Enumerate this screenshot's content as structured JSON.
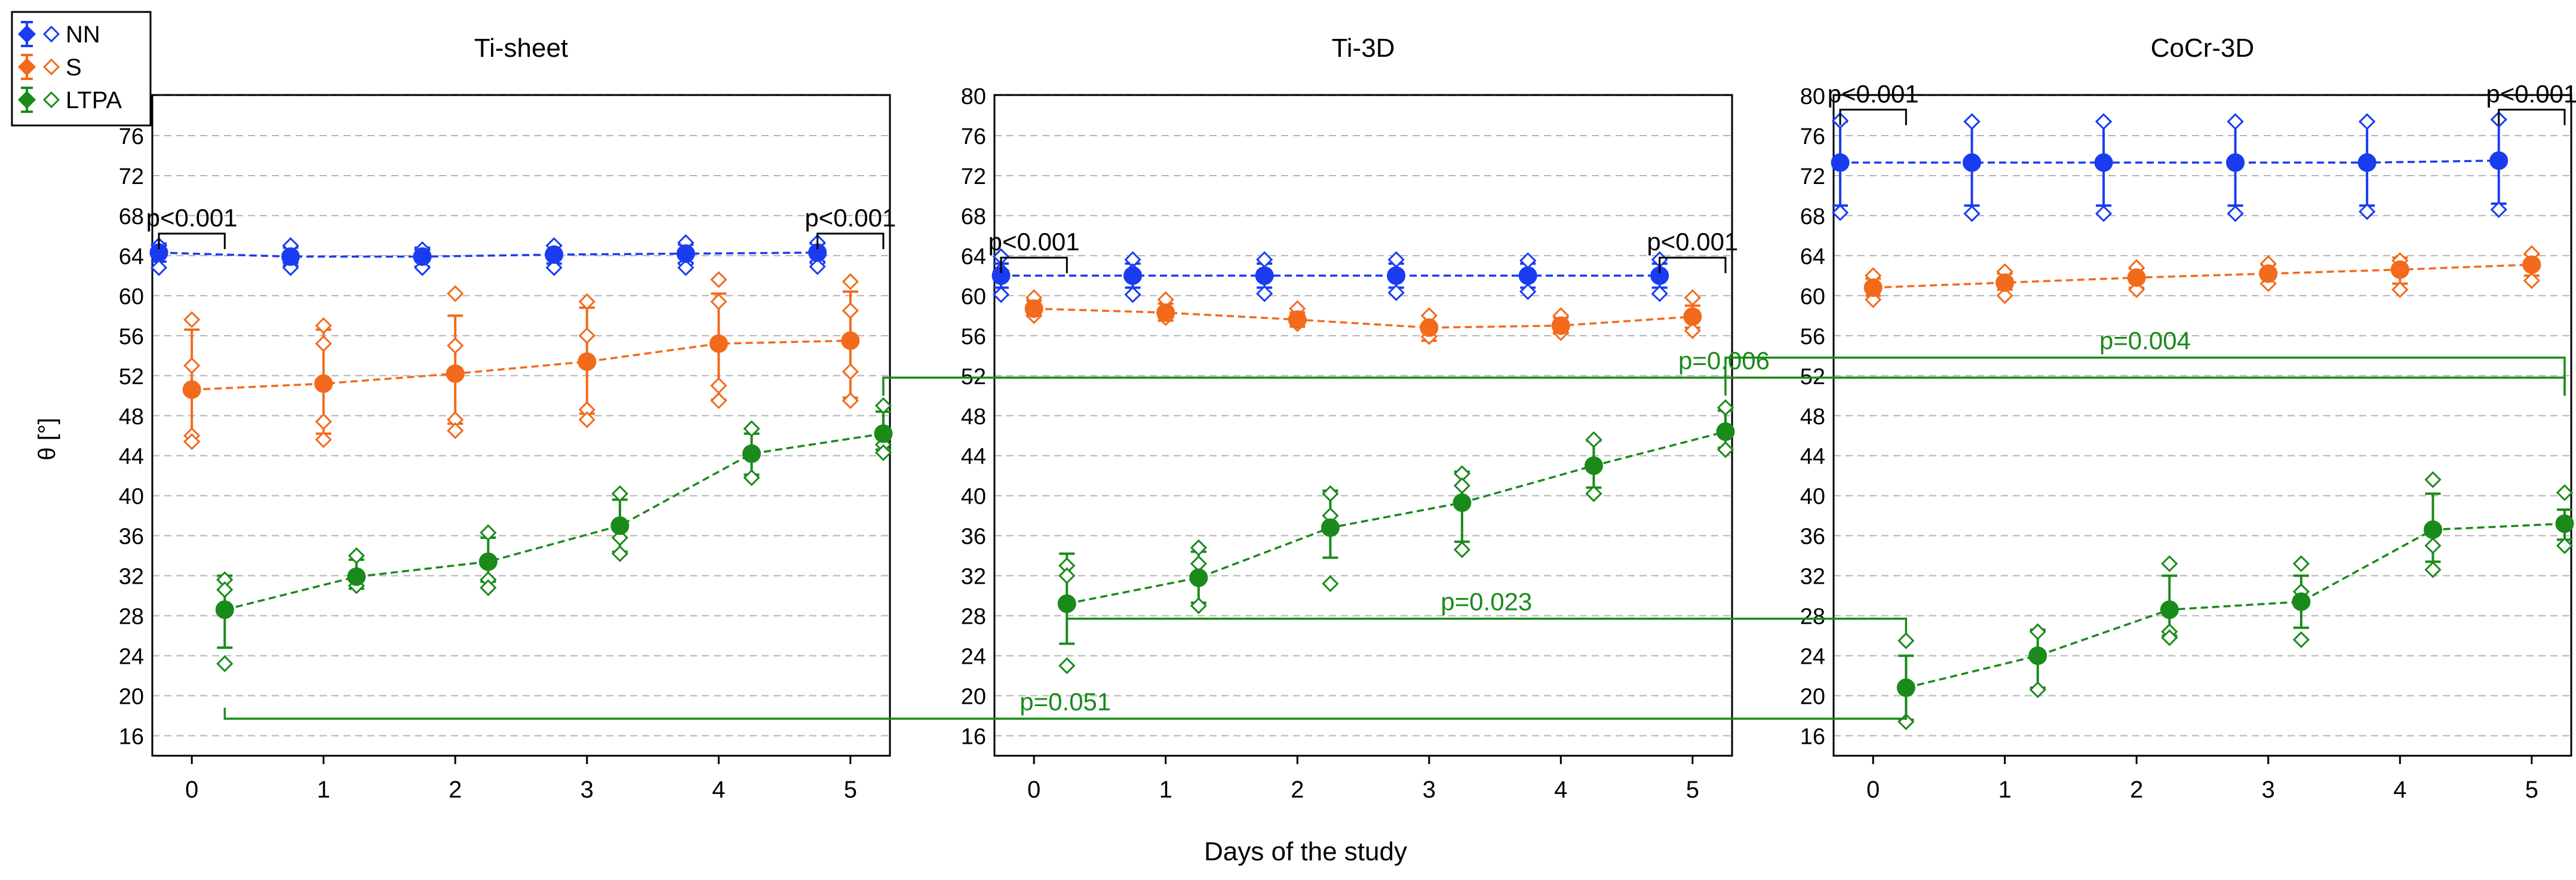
{
  "chart_data": {
    "type": "line",
    "xlabel": "Days of the study",
    "ylabel": "θ [°]",
    "legend": {
      "placement": "top-left",
      "entries": [
        "NN",
        "S",
        "LTPA"
      ]
    },
    "colors": {
      "NN": "#1a3cf0",
      "S": "#f26a1b",
      "LTPA": "#1a8a1a",
      "bracket": "#1a8a1a",
      "grid": "#b4b4b4"
    },
    "x": [
      0,
      1,
      2,
      3,
      4,
      5
    ],
    "x_ticks": [
      "0",
      "1",
      "2",
      "3",
      "4",
      "5"
    ],
    "xlim": [
      -0.3,
      5.3
    ],
    "ylim": [
      14,
      80
    ],
    "y_ticks": [
      "16",
      "20",
      "24",
      "28",
      "32",
      "36",
      "40",
      "44",
      "48",
      "52",
      "56",
      "60",
      "64",
      "68",
      "72",
      "76",
      "80"
    ],
    "grid": "horizontal dashed",
    "error_bars": true,
    "panels": [
      {
        "title": "Ti-sheet",
        "series": [
          {
            "name": "NN",
            "offset": -0.25,
            "values": [
              64.3,
              63.9,
              63.9,
              64.1,
              64.2,
              64.3
            ],
            "err_lo": [
              63.4,
              63.0,
              62.9,
              63.2,
              63.3,
              63.4
            ],
            "err_hi": [
              65.2,
              64.8,
              64.8,
              65.0,
              65.1,
              65.2
            ],
            "obs": [
              [
                65.0,
                62.8
              ],
              [
                65.0,
                63.3,
                62.8
              ],
              [
                64.6,
                62.8
              ],
              [
                65.0,
                62.8
              ],
              [
                65.3,
                63.2,
                62.8
              ],
              [
                65.3,
                63.3,
                62.9
              ]
            ]
          },
          {
            "name": "S",
            "offset": 0,
            "values": [
              50.6,
              51.2,
              52.2,
              53.4,
              55.2,
              55.5
            ],
            "err_lo": [
              45.4,
              46.2,
              47.2,
              48.2,
              49.6,
              49.8
            ],
            "err_hi": [
              56.6,
              56.6,
              58.0,
              58.8,
              60.2,
              60.4
            ],
            "obs": [
              [
                57.6,
                53.0,
                46.0,
                45.4
              ],
              [
                57.0,
                55.2,
                47.4,
                45.6
              ],
              [
                60.2,
                55.0,
                47.6,
                46.5
              ],
              [
                59.4,
                56.0,
                48.6,
                47.6
              ],
              [
                61.6,
                59.4,
                51.0,
                49.5
              ],
              [
                61.4,
                58.5,
                52.4,
                49.5
              ]
            ]
          },
          {
            "name": "LTPA",
            "offset": 0.25,
            "values": [
              28.6,
              31.9,
              33.4,
              37.0,
              44.2,
              46.2
            ],
            "err_lo": [
              24.8,
              30.7,
              31.4,
              34.4,
              42.1,
              44.6
            ],
            "err_hi": [
              32.0,
              33.6,
              35.8,
              39.6,
              46.2,
              48.4
            ],
            "obs": [
              [
                31.6,
                30.6,
                23.2
              ],
              [
                34.0,
                31.0
              ],
              [
                36.3,
                31.6,
                30.8
              ],
              [
                40.2,
                35.8,
                34.2
              ],
              [
                46.7,
                41.8
              ],
              [
                49.0,
                45.1,
                44.3
              ]
            ]
          }
        ],
        "annotations": [
          {
            "text": "p<0.001",
            "type": "bracket",
            "x1": -0.25,
            "x2": 0.25,
            "level": 66.2,
            "color": "#000000"
          },
          {
            "text": "p<0.001",
            "type": "bracket",
            "x1": 4.75,
            "x2": 5.25,
            "level": 66.2,
            "color": "#000000"
          }
        ]
      },
      {
        "title": "Ti-3D",
        "series": [
          {
            "name": "NN",
            "offset": -0.25,
            "values": [
              62.0,
              62.0,
              62.0,
              62.0,
              62.0,
              62.0
            ],
            "err_lo": [
              60.8,
              60.8,
              60.8,
              60.8,
              60.8,
              60.8
            ],
            "err_hi": [
              63.2,
              63.2,
              63.2,
              63.2,
              63.2,
              63.2
            ],
            "obs": [
              [
                63.9,
                62.5,
                60.1
              ],
              [
                63.6,
                62.4,
                60.1
              ],
              [
                63.6,
                62.0,
                60.2
              ],
              [
                63.6,
                62.2,
                60.3
              ],
              [
                63.5,
                62.0,
                60.4
              ],
              [
                63.6,
                62.0,
                60.2
              ]
            ]
          },
          {
            "name": "S",
            "offset": 0,
            "values": [
              58.7,
              58.3,
              57.6,
              56.8,
              57.0,
              57.9
            ],
            "err_lo": [
              58.0,
              57.5,
              56.9,
              55.5,
              56.2,
              56.8
            ],
            "err_hi": [
              59.5,
              59.2,
              58.3,
              58.0,
              57.8,
              59.0
            ],
            "obs": [
              [
                59.8,
                58.0
              ],
              [
                59.6,
                57.8
              ],
              [
                58.7,
                57.2
              ],
              [
                58.0,
                55.9
              ],
              [
                58.0,
                56.3
              ],
              [
                59.8,
                56.5
              ]
            ]
          },
          {
            "name": "LTPA",
            "offset": 0.25,
            "values": [
              29.2,
              31.8,
              36.8,
              39.3,
              43.0,
              46.4
            ],
            "err_lo": [
              25.2,
              29.3,
              33.8,
              35.4,
              40.8,
              44.8
            ],
            "err_hi": [
              34.2,
              34.4,
              40.5,
              42.4,
              45.5,
              48.5
            ],
            "obs": [
              [
                33.0,
                32.0,
                23.0
              ],
              [
                34.8,
                33.2,
                29.0
              ],
              [
                40.2,
                38.0,
                31.2
              ],
              [
                42.2,
                41.0,
                34.6
              ],
              [
                45.6,
                40.2
              ],
              [
                48.8,
                44.6
              ]
            ]
          }
        ],
        "annotations": [
          {
            "text": "p<0.001",
            "type": "bracket",
            "x1": -0.25,
            "x2": 0.25,
            "level": 63.8,
            "color": "#000000"
          },
          {
            "text": "p<0.001",
            "type": "bracket",
            "x1": 4.75,
            "x2": 5.25,
            "level": 63.8,
            "color": "#000000"
          }
        ]
      },
      {
        "title": "CoCr-3D",
        "series": [
          {
            "name": "NN",
            "offset": -0.25,
            "values": [
              73.3,
              73.3,
              73.3,
              73.3,
              73.3,
              73.5
            ],
            "err_lo": [
              69.0,
              69.0,
              69.0,
              69.0,
              69.0,
              69.2
            ],
            "err_hi": [
              77.4,
              77.4,
              77.4,
              77.4,
              77.4,
              77.6
            ],
            "obs": [
              [
                77.5,
                73.3,
                68.3
              ],
              [
                77.4,
                73.3,
                68.2
              ],
              [
                77.4,
                73.3,
                68.2
              ],
              [
                77.4,
                73.3,
                68.2
              ],
              [
                77.4,
                73.3,
                68.4
              ],
              [
                77.6,
                73.5,
                68.6
              ]
            ]
          },
          {
            "name": "S",
            "offset": 0,
            "values": [
              60.8,
              61.3,
              61.8,
              62.2,
              62.6,
              63.1
            ],
            "err_lo": [
              60.0,
              60.6,
              60.8,
              61.2,
              61.2,
              62.0
            ],
            "err_hi": [
              61.7,
              62.2,
              62.7,
              63.1,
              63.8,
              64.1
            ],
            "obs": [
              [
                62.0,
                59.6
              ],
              [
                62.4,
                60.0
              ],
              [
                62.8,
                60.6
              ],
              [
                63.2,
                61.2
              ],
              [
                63.5,
                60.6
              ],
              [
                64.2,
                61.5
              ]
            ]
          },
          {
            "name": "LTPA",
            "offset": 0.25,
            "values": [
              20.8,
              24.0,
              28.6,
              29.4,
              36.6,
              37.2
            ],
            "err_lo": [
              17.6,
              20.8,
              26.0,
              26.8,
              33.4,
              35.6
            ],
            "err_hi": [
              24.0,
              26.6,
              32.0,
              32.0,
              40.2,
              38.6
            ],
            "obs": [
              [
                25.5,
                17.4
              ],
              [
                26.4,
                20.6
              ],
              [
                33.2,
                26.4,
                25.8
              ],
              [
                33.2,
                30.4,
                25.6
              ],
              [
                41.6,
                35.0,
                32.6
              ],
              [
                40.3,
                35.0
              ]
            ]
          }
        ],
        "annotations": [
          {
            "text": "p<0.001",
            "type": "bracket",
            "x1": -0.25,
            "x2": 0.25,
            "level": 78.6,
            "color": "#000000"
          },
          {
            "text": "p<0.001",
            "type": "bracket",
            "x1": 4.75,
            "x2": 5.25,
            "level": 78.6,
            "color": "#000000"
          }
        ]
      }
    ],
    "cross_panel_annotations": [
      {
        "text": "p=0.006",
        "from_panel": 0,
        "from_x": 5.25,
        "to_panel": 2,
        "to_x": 5.25,
        "level": 51.8,
        "drop_end": 50.0
      },
      {
        "text": "p=0.004",
        "from_panel": 1,
        "from_x": 5.25,
        "to_panel": 2,
        "to_x": 5.25,
        "level": 53.8,
        "drop_end": 50.0
      },
      {
        "text": "p=0.023",
        "from_panel": 1,
        "from_x": 0.25,
        "to_panel": 2,
        "to_x": 0.25,
        "level": 27.7,
        "drop_end": 26.2
      },
      {
        "text": "p=0.051",
        "from_panel": 0,
        "from_x": 0.25,
        "to_panel": 2,
        "to_x": 0.25,
        "level": 17.7,
        "drop_end": 18.8
      }
    ]
  }
}
